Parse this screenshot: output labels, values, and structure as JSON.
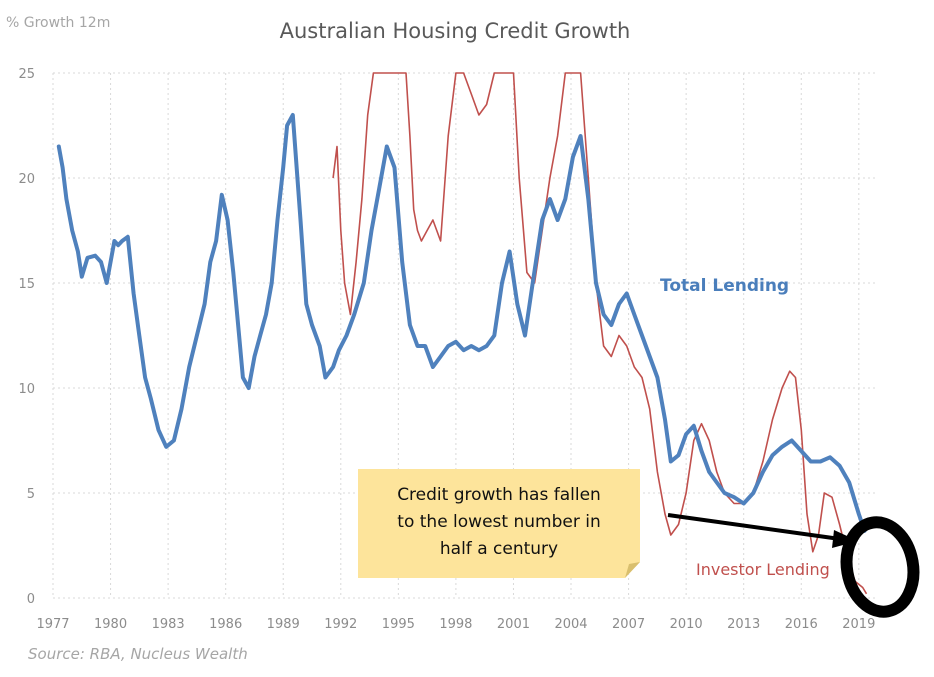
{
  "chart_data": {
    "type": "line",
    "title": "Australian Housing Credit Growth",
    "ylabel": "% Growth 12m",
    "xlabel": "",
    "xlim": [
      1977,
      2020
    ],
    "ylim": [
      0,
      25
    ],
    "y_ticks": [
      0,
      5,
      10,
      15,
      20,
      25
    ],
    "x_ticks": [
      1977,
      1980,
      1983,
      1986,
      1989,
      1992,
      1995,
      1998,
      2001,
      2004,
      2007,
      2010,
      2013,
      2016,
      2019
    ],
    "grid": true,
    "source": "Source: RBA, Nucleus Wealth",
    "annotation": {
      "lines": [
        "Credit growth has fallen",
        "to the lowest number in",
        "half a century"
      ]
    },
    "colors": {
      "total": "#4f81bd",
      "investor": "#c0504d",
      "note_fill": "#fde49b",
      "grid": "#d9d9d9"
    },
    "series": [
      {
        "name": "Total Lending",
        "label": "Total Lending",
        "x": [
          1977.3,
          1977.5,
          1977.7,
          1978.0,
          1978.3,
          1978.5,
          1978.8,
          1979.2,
          1979.5,
          1979.8,
          1980.2,
          1980.4,
          1980.6,
          1980.9,
          1981.2,
          1981.5,
          1981.8,
          1982.1,
          1982.5,
          1982.9,
          1983.3,
          1983.7,
          1984.1,
          1984.5,
          1984.9,
          1985.2,
          1985.5,
          1985.8,
          1986.1,
          1986.4,
          1986.7,
          1986.9,
          1987.2,
          1987.5,
          1987.8,
          1988.1,
          1988.4,
          1988.7,
          1989.0,
          1989.2,
          1989.5,
          1989.9,
          1990.2,
          1990.5,
          1990.9,
          1991.2,
          1991.6,
          1991.9,
          1992.3,
          1992.7,
          1993.2,
          1993.6,
          1994.0,
          1994.4,
          1994.8,
          1995.2,
          1995.6,
          1996.0,
          1996.4,
          1996.8,
          1997.2,
          1997.6,
          1998.0,
          1998.4,
          1998.8,
          1999.2,
          1999.6,
          2000.0,
          2000.4,
          2000.8,
          2001.2,
          2001.6,
          2002.0,
          2002.5,
          2002.9,
          2003.3,
          2003.7,
          2004.1,
          2004.5,
          2004.9,
          2005.3,
          2005.7,
          2006.1,
          2006.5,
          2006.9,
          2007.3,
          2007.7,
          2008.1,
          2008.5,
          2008.9,
          2009.2,
          2009.6,
          2010.0,
          2010.4,
          2010.8,
          2011.2,
          2011.6,
          2012.0,
          2012.5,
          2013.0,
          2013.5,
          2014.0,
          2014.5,
          2015.0,
          2015.5,
          2016.0,
          2016.5,
          2017.0,
          2017.5,
          2018.0,
          2018.5,
          2019.0,
          2019.3
        ],
        "values": [
          21.5,
          20.5,
          19.0,
          17.5,
          16.5,
          15.3,
          16.2,
          16.3,
          16.0,
          15.0,
          17.0,
          16.8,
          17.0,
          17.2,
          14.5,
          12.5,
          10.5,
          9.5,
          8.0,
          7.2,
          7.5,
          9.0,
          11.0,
          12.5,
          14.0,
          16.0,
          17.0,
          19.2,
          18.0,
          15.5,
          12.5,
          10.5,
          10.0,
          11.5,
          12.5,
          13.5,
          15.0,
          18.0,
          20.5,
          22.5,
          23.0,
          18.0,
          14.0,
          13.0,
          12.0,
          10.5,
          11.0,
          11.8,
          12.5,
          13.5,
          15.0,
          17.5,
          19.5,
          21.5,
          20.5,
          16.0,
          13.0,
          12.0,
          12.0,
          11.0,
          11.5,
          12.0,
          12.2,
          11.8,
          12.0,
          11.8,
          12.0,
          12.5,
          15.0,
          16.5,
          14.0,
          12.5,
          15.0,
          18.0,
          19.0,
          18.0,
          19.0,
          21.0,
          22.0,
          19.0,
          15.0,
          13.5,
          13.0,
          14.0,
          14.5,
          13.5,
          12.5,
          11.5,
          10.5,
          8.5,
          6.5,
          6.8,
          7.8,
          8.2,
          7.0,
          6.0,
          5.5,
          5.0,
          4.8,
          4.5,
          5.0,
          6.0,
          6.8,
          7.2,
          7.5,
          7.0,
          6.5,
          6.5,
          6.7,
          6.3,
          5.5,
          4.0,
          3.2
        ]
      },
      {
        "name": "Investor Lending",
        "label": "Investor Lending",
        "x": [
          1991.6,
          1991.8,
          1992.0,
          1992.2,
          1992.5,
          1992.8,
          1993.1,
          1993.4,
          1993.7,
          1994.0,
          1994.3,
          1994.6,
          1995.0,
          1995.4,
          1995.6,
          1995.8,
          1996.0,
          1996.2,
          1996.5,
          1996.8,
          1997.2,
          1997.6,
          1998.0,
          1998.4,
          1998.8,
          1999.2,
          1999.6,
          2000.0,
          2000.4,
          2000.8,
          2001.0,
          2001.3,
          2001.7,
          2002.1,
          2002.5,
          2002.9,
          2003.3,
          2003.7,
          2004.1,
          2004.5,
          2004.9,
          2005.3,
          2005.7,
          2006.1,
          2006.5,
          2006.9,
          2007.3,
          2007.7,
          2008.1,
          2008.5,
          2008.9,
          2009.2,
          2009.6,
          2010.0,
          2010.4,
          2010.8,
          2011.2,
          2011.6,
          2012.0,
          2012.5,
          2013.0,
          2013.5,
          2014.0,
          2014.5,
          2015.0,
          2015.4,
          2015.7,
          2016.0,
          2016.3,
          2016.6,
          2016.9,
          2017.2,
          2017.6,
          2018.0,
          2018.4,
          2018.8,
          2019.2,
          2019.4
        ],
        "values": [
          20.0,
          21.5,
          17.5,
          15.0,
          13.5,
          16.0,
          19.0,
          23.0,
          25.0,
          25.0,
          25.0,
          25.0,
          25.0,
          25.0,
          22.0,
          18.5,
          17.5,
          17.0,
          17.5,
          18.0,
          17.0,
          22.0,
          25.0,
          25.0,
          24.0,
          23.0,
          23.5,
          25.0,
          25.0,
          25.0,
          25.0,
          20.0,
          15.5,
          15.0,
          17.5,
          20.0,
          22.0,
          25.0,
          25.0,
          25.0,
          20.0,
          15.0,
          12.0,
          11.5,
          12.5,
          12.0,
          11.0,
          10.5,
          9.0,
          6.0,
          4.0,
          3.0,
          3.5,
          5.0,
          7.5,
          8.3,
          7.5,
          6.0,
          5.0,
          4.5,
          4.5,
          5.0,
          6.5,
          8.5,
          10.0,
          10.8,
          10.5,
          8.0,
          4.0,
          2.2,
          3.0,
          5.0,
          4.8,
          3.5,
          2.0,
          0.8,
          0.5,
          0.2
        ]
      }
    ]
  }
}
